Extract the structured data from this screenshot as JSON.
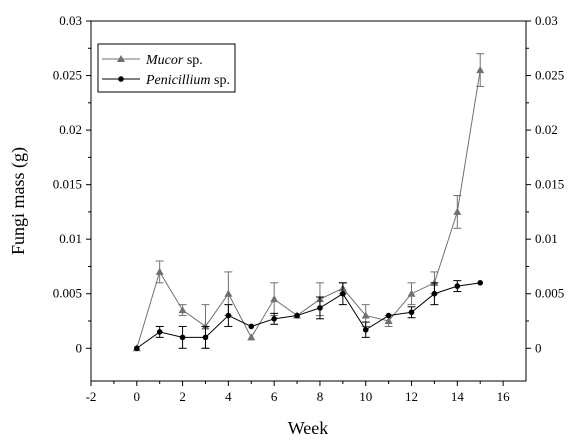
{
  "chart_data": {
    "type": "line",
    "xlabel": "Week",
    "ylabel": "Fungi mass (g)",
    "xlim": [
      -2,
      17
    ],
    "ylim": [
      -0.003,
      0.03
    ],
    "x_ticks": [
      -2,
      0,
      2,
      4,
      6,
      8,
      10,
      12,
      14,
      16
    ],
    "x_tick_labels": [
      "-2",
      "0",
      "2",
      "4",
      "6",
      "8",
      "10",
      "12",
      "14",
      "16"
    ],
    "y_ticks": [
      0,
      0.005,
      0.01,
      0.015,
      0.02,
      0.025,
      0.03
    ],
    "y_tick_labels": [
      "0",
      "0.005",
      "0.01",
      "0.015",
      "0.02",
      "0.025",
      "0.03"
    ],
    "right_axis_mirrors_left": true,
    "grid": false,
    "legend_position": "top-left",
    "x": [
      0,
      1,
      2,
      3,
      4,
      5,
      6,
      7,
      8,
      9,
      10,
      11,
      12,
      13,
      14,
      15
    ],
    "series": [
      {
        "name_italic": "Mucor",
        "name_suffix": " sp.",
        "marker": "triangle",
        "color": "#707070",
        "values": [
          0,
          0.007,
          0.0035,
          0.002,
          0.005,
          0.001,
          0.0045,
          0.003,
          0.0045,
          0.0055,
          0.003,
          0.0025,
          0.005,
          0.006,
          0.0125,
          0.0255
        ],
        "errors": [
          0,
          0.001,
          0.0005,
          0.002,
          0.002,
          0,
          0.0015,
          0,
          0.0015,
          0.0005,
          0.001,
          0.0005,
          0.001,
          0.001,
          0.0015,
          0.0015
        ]
      },
      {
        "name_italic": "Penicillium",
        "name_suffix": " sp.",
        "marker": "circle",
        "color": "#000000",
        "values": [
          0,
          0.0015,
          0.001,
          0.001,
          0.003,
          0.002,
          0.0027,
          0.003,
          0.0037,
          0.005,
          0.0017,
          0.003,
          0.0033,
          0.005,
          0.0057,
          0.006
        ],
        "errors": [
          0,
          0.0005,
          0.001,
          0.001,
          0.001,
          0,
          0.0005,
          0,
          0.001,
          0.001,
          0.0007,
          0,
          0.0005,
          0.001,
          0.0005,
          0
        ]
      }
    ]
  }
}
